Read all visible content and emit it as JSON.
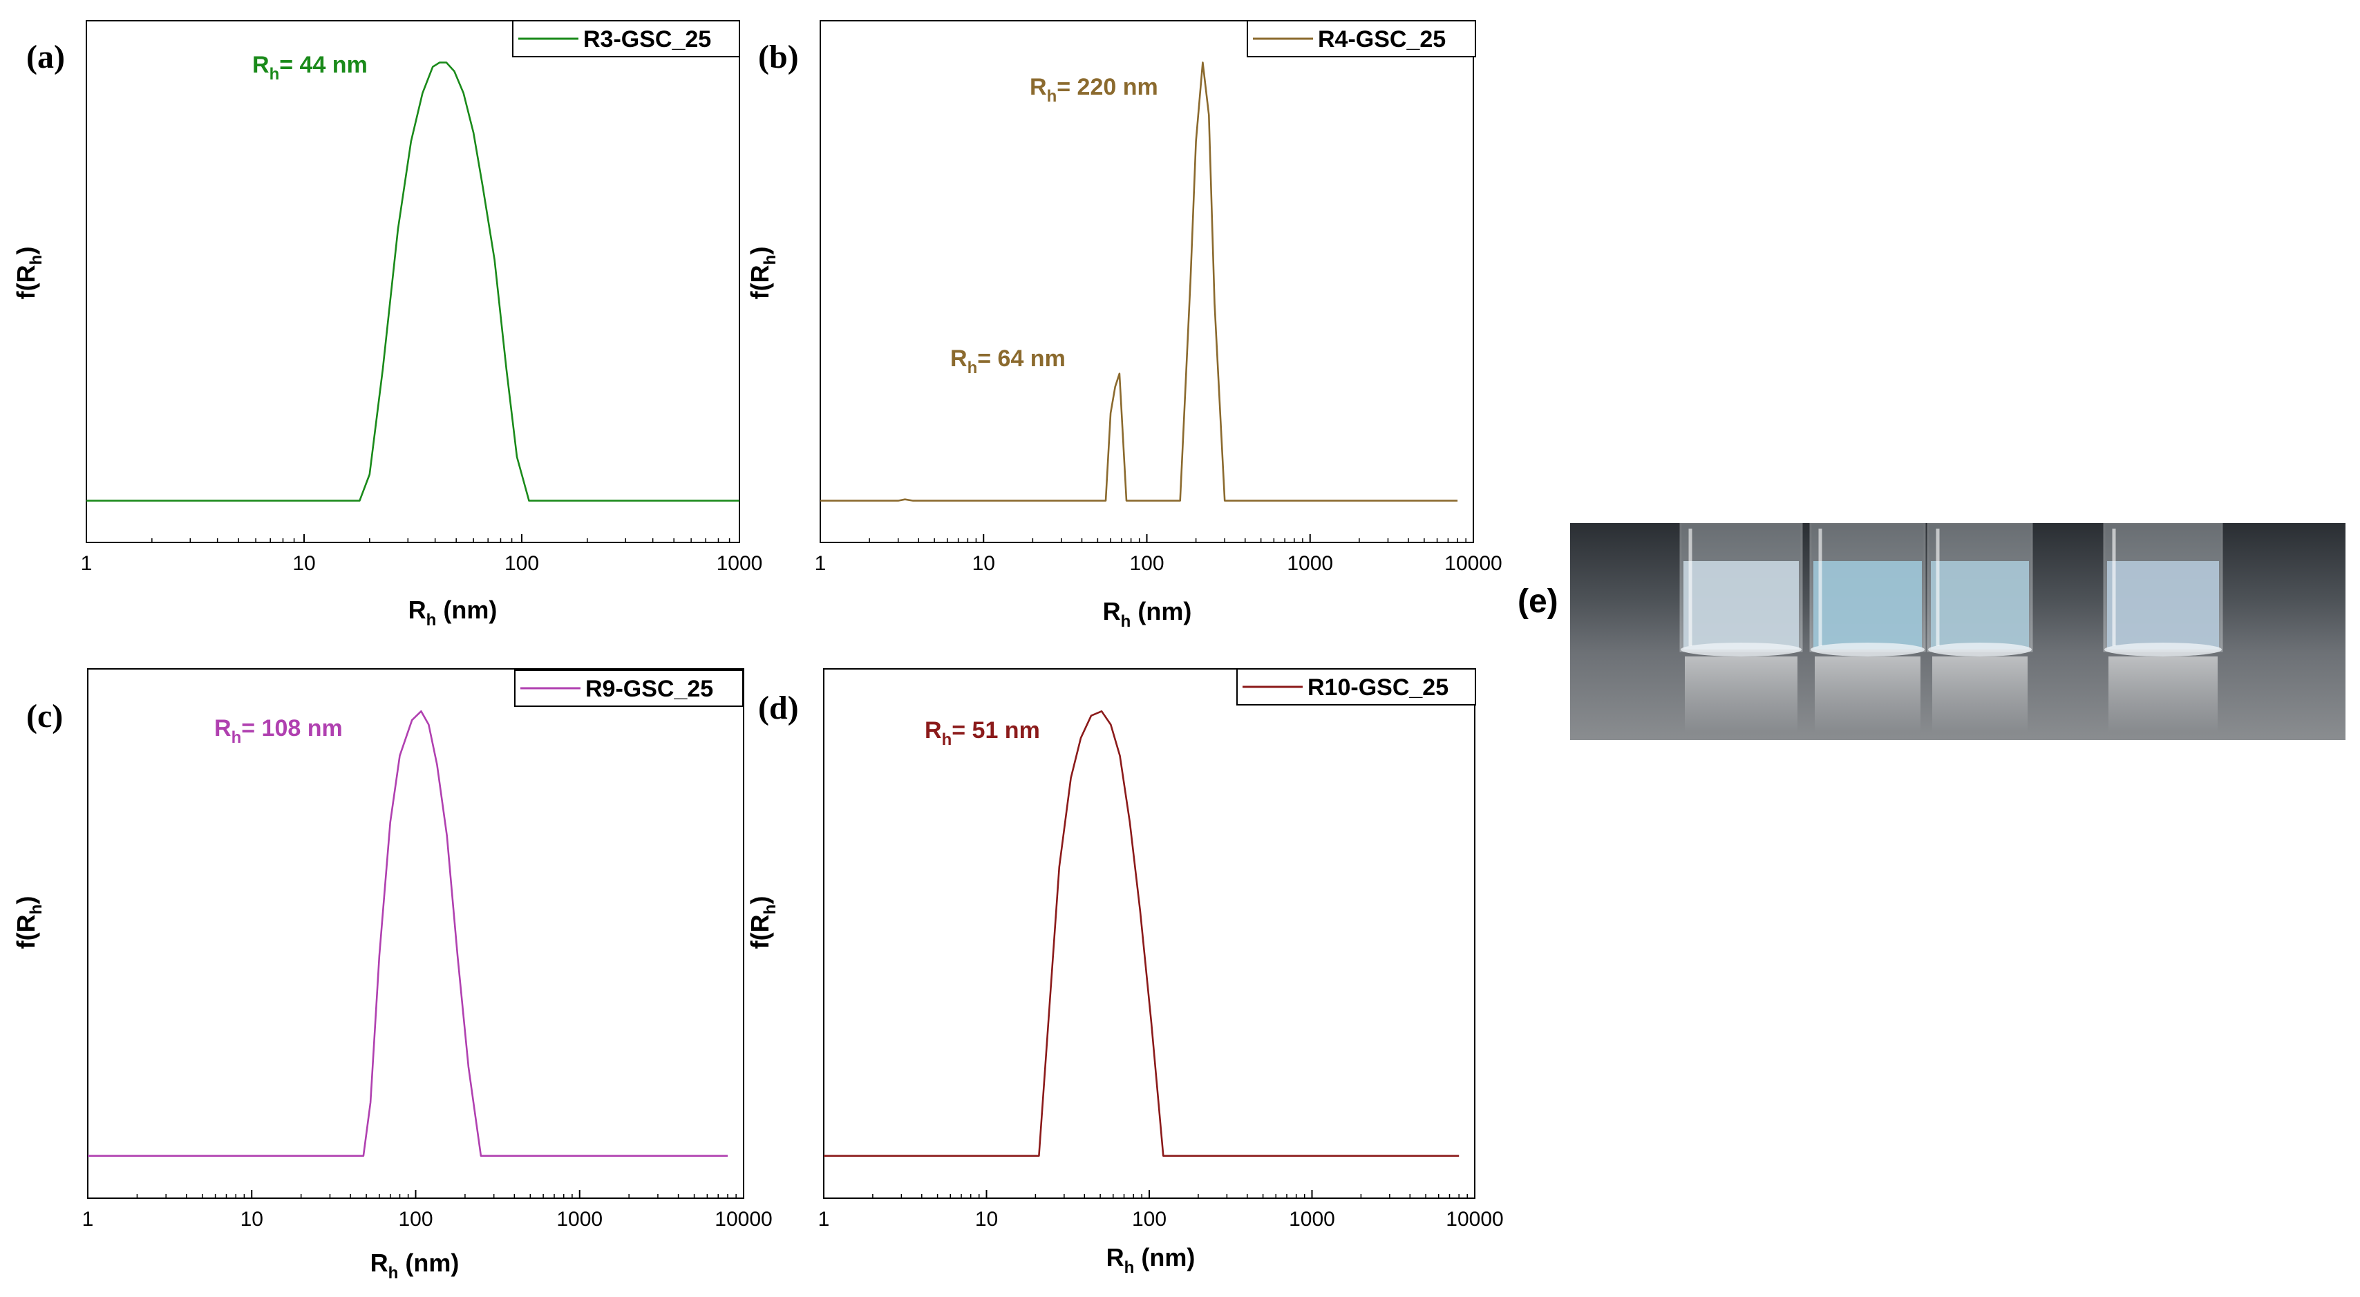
{
  "chart_data": [
    {
      "panel": "(a)",
      "type": "line",
      "x_scale": "log",
      "xlim": [
        1,
        1000
      ],
      "xticks": [
        "1",
        "10",
        "100",
        "1000"
      ],
      "xlabel": "nm",
      "ylabel": "f(R",
      "legend": "R3-GSC_25",
      "legend_position": "top-right",
      "color": "#1a8a1a",
      "annotations": [
        {
          "label": "R",
          "value": "= 44 nm",
          "x": 44
        }
      ],
      "series": [
        {
          "name": "R3-GSC_25",
          "points": [
            [
              1,
              0
            ],
            [
              18,
              0
            ],
            [
              20,
              0.06
            ],
            [
              23,
              0.3
            ],
            [
              27,
              0.62
            ],
            [
              31,
              0.82
            ],
            [
              35,
              0.93
            ],
            [
              39,
              0.99
            ],
            [
              42,
              1.0
            ],
            [
              45,
              1.0
            ],
            [
              49,
              0.98
            ],
            [
              54,
              0.93
            ],
            [
              60,
              0.84
            ],
            [
              66,
              0.72
            ],
            [
              75,
              0.55
            ],
            [
              85,
              0.3
            ],
            [
              95,
              0.1
            ],
            [
              108,
              0
            ],
            [
              1000,
              0
            ]
          ]
        }
      ]
    },
    {
      "panel": "(b)",
      "type": "line",
      "x_scale": "log",
      "xlim": [
        1,
        10000
      ],
      "xticks": [
        "1",
        "10",
        "100",
        "1000",
        "10000"
      ],
      "xlabel": "nm",
      "ylabel": "f(R",
      "legend": "R4-GSC_25",
      "legend_position": "top-right",
      "color": "#8b6a2e",
      "annotations": [
        {
          "label": "R",
          "value": "= 64 nm",
          "x": 64
        },
        {
          "label": "R",
          "value": "= 220 nm",
          "x": 220
        }
      ],
      "series": [
        {
          "name": "R4-GSC_25",
          "points": [
            [
              1,
              0
            ],
            [
              3,
              0
            ],
            [
              3.3,
              0.003
            ],
            [
              3.7,
              0
            ],
            [
              56,
              0
            ],
            [
              60,
              0.2
            ],
            [
              64,
              0.26
            ],
            [
              68,
              0.29
            ],
            [
              75,
              0
            ],
            [
              160,
              0
            ],
            [
              185,
              0.5
            ],
            [
              200,
              0.82
            ],
            [
              220,
              1.0
            ],
            [
              240,
              0.88
            ],
            [
              260,
              0.45
            ],
            [
              300,
              0
            ],
            [
              8000,
              0
            ]
          ]
        }
      ]
    },
    {
      "panel": "(c)",
      "type": "line",
      "x_scale": "log",
      "xlim": [
        1,
        10000
      ],
      "xticks": [
        "1",
        "10",
        "100",
        "1000",
        "10000"
      ],
      "xlabel": "nm",
      "ylabel": "f(R",
      "legend": "R9-GSC_25",
      "legend_position": "top-right",
      "color": "#b040b0",
      "annotations": [
        {
          "label": "R",
          "value": "= 108 nm",
          "x": 108
        }
      ],
      "series": [
        {
          "name": "R9-GSC_25",
          "points": [
            [
              1,
              0
            ],
            [
              48,
              0
            ],
            [
              53,
              0.12
            ],
            [
              60,
              0.45
            ],
            [
              70,
              0.75
            ],
            [
              80,
              0.9
            ],
            [
              95,
              0.98
            ],
            [
              108,
              1.0
            ],
            [
              120,
              0.97
            ],
            [
              135,
              0.88
            ],
            [
              155,
              0.72
            ],
            [
              180,
              0.45
            ],
            [
              210,
              0.2
            ],
            [
              250,
              0
            ],
            [
              8000,
              0
            ]
          ]
        }
      ]
    },
    {
      "panel": "(d)",
      "type": "line",
      "x_scale": "log",
      "xlim": [
        1,
        10000
      ],
      "xticks": [
        "1",
        "10",
        "100",
        "1000",
        "10000"
      ],
      "xlabel": "nm",
      "ylabel": "f(R",
      "legend": "R10-GSC_25",
      "legend_position": "top-right",
      "color": "#8b1a1a",
      "annotations": [
        {
          "label": "R",
          "value": "= 51 nm",
          "x": 51
        }
      ],
      "series": [
        {
          "name": "R10-GSC_25",
          "points": [
            [
              1,
              0
            ],
            [
              21,
              0
            ],
            [
              24,
              0.3
            ],
            [
              28,
              0.65
            ],
            [
              33,
              0.85
            ],
            [
              38,
              0.94
            ],
            [
              44,
              0.99
            ],
            [
              51,
              1.0
            ],
            [
              58,
              0.97
            ],
            [
              66,
              0.9
            ],
            [
              76,
              0.75
            ],
            [
              88,
              0.55
            ],
            [
              103,
              0.3
            ],
            [
              122,
              0
            ],
            [
              8000,
              0
            ]
          ]
        }
      ]
    }
  ],
  "panel_e": {
    "label": "(e)",
    "glass_colors": [
      "#c8d6e0",
      "#9ec6d8",
      "#a8c8d6",
      "#b4c8d8"
    ]
  },
  "axis_symbol": "R",
  "axis_subscript": "h",
  "ylabel_close": ")"
}
